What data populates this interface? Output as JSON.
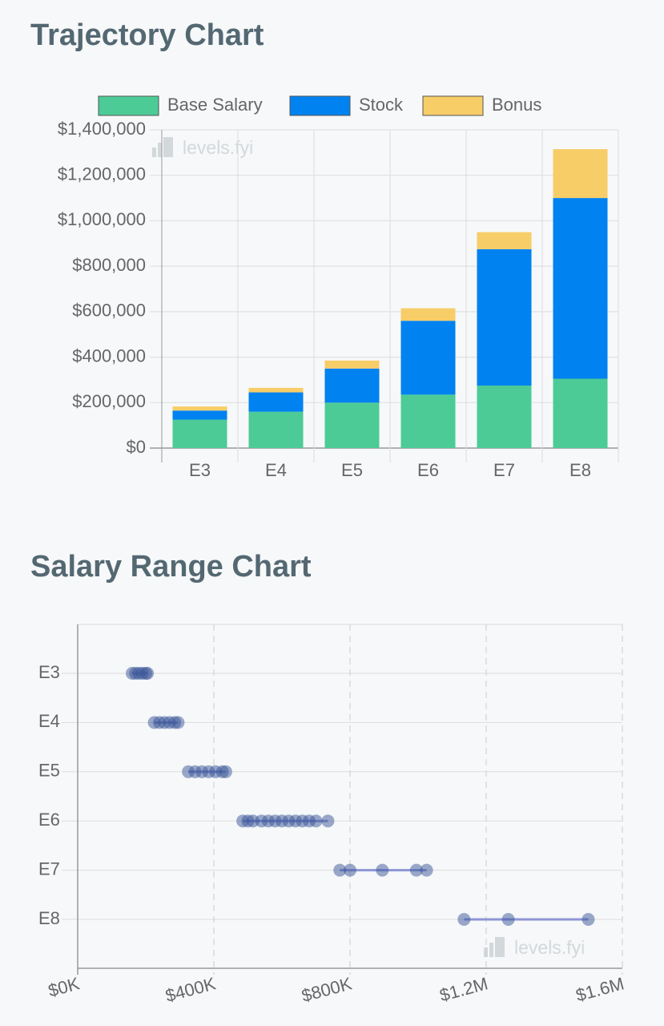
{
  "chart_data": [
    {
      "type": "bar",
      "stacked": true,
      "title": "Trajectory Chart",
      "watermark": "levels.fyi",
      "categories": [
        "E3",
        "E4",
        "E5",
        "E6",
        "E7",
        "E8"
      ],
      "series": [
        {
          "name": "Base Salary",
          "color": "#4ccb96",
          "values": [
            125000,
            160000,
            200000,
            235000,
            275000,
            305000
          ]
        },
        {
          "name": "Stock",
          "color": "#0082f0",
          "values": [
            40000,
            85000,
            150000,
            325000,
            600000,
            795000
          ]
        },
        {
          "name": "Bonus",
          "color": "#f7cd68",
          "values": [
            18000,
            20000,
            35000,
            55000,
            75000,
            215000
          ]
        }
      ],
      "ylim": [
        0,
        1400000
      ],
      "yticks": [
        {
          "value": 0,
          "label": "$0"
        },
        {
          "value": 200000,
          "label": "$200,000"
        },
        {
          "value": 400000,
          "label": "$400,000"
        },
        {
          "value": 600000,
          "label": "$600,000"
        },
        {
          "value": 800000,
          "label": "$800,000"
        },
        {
          "value": 1000000,
          "label": "$1,000,000"
        },
        {
          "value": 1200000,
          "label": "$1,200,000"
        },
        {
          "value": 1400000,
          "label": "$1,400,000"
        }
      ],
      "grid": true,
      "legend": "top"
    },
    {
      "type": "range",
      "title": "Salary Range Chart",
      "watermark": "levels.fyi",
      "categories": [
        "E3",
        "E4",
        "E5",
        "E6",
        "E7",
        "E8"
      ],
      "values": [
        [
          160000,
          170000,
          180000,
          190000,
          200000,
          205000
        ],
        [
          225000,
          240000,
          255000,
          270000,
          285000,
          295000
        ],
        [
          325000,
          345000,
          365000,
          385000,
          405000,
          425000,
          435000
        ],
        [
          485000,
          500000,
          515000,
          540000,
          560000,
          580000,
          600000,
          620000,
          640000,
          660000,
          680000,
          700000,
          735000
        ],
        [
          770000,
          800000,
          895000,
          995000,
          1025000
        ],
        [
          1135000,
          1265000,
          1500000
        ]
      ],
      "color": "#3a5597",
      "range_color": "#8e96d6",
      "xlim": [
        0,
        1600000
      ],
      "xticks": [
        {
          "value": 0,
          "label": "$0K"
        },
        {
          "value": 400000,
          "label": "$400K"
        },
        {
          "value": 800000,
          "label": "$800K"
        },
        {
          "value": 1200000,
          "label": "$1.2M"
        },
        {
          "value": 1600000,
          "label": "$1.6M"
        }
      ],
      "grid": true
    }
  ]
}
